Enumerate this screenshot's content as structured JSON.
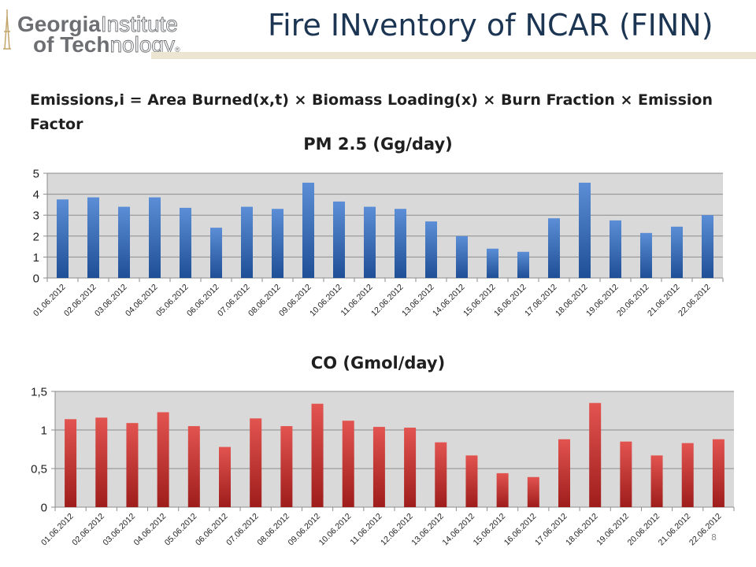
{
  "header": {
    "logo_line1_bold": "Georgia",
    "logo_line1_light": "Institute",
    "logo_line2_bold": "of Tech",
    "logo_line2_light": "nology",
    "logo_mark": "®",
    "title": "Fire INventory of NCAR (FINN)"
  },
  "equation": "Emissions,i = Area Burned(x,t) × Biomass Loading(x) × Burn Fraction × Emission Factor",
  "slide_number": "8",
  "colors": {
    "title": "#1b3553",
    "plot_background": "#d9d9d9",
    "pm_bar_top": "#5b8ed6",
    "pm_bar_bottom": "#1f4f96",
    "co_bar_top": "#e25450",
    "co_bar_bottom": "#9e1d1b",
    "logo_gold": "#c3a56a",
    "logo_gray": "#6d6f72"
  },
  "chart_data": [
    {
      "type": "bar",
      "title": "PM 2.5 (Gg/day)",
      "categories": [
        "01.06.2012",
        "02.06.2012",
        "03.06.2012",
        "04.06.2012",
        "05.06.2012",
        "06.06.2012",
        "07.06.2012",
        "08.06.2012",
        "09.06.2012",
        "10.06.2012",
        "11.06.2012",
        "12.06.2012",
        "13.06.2012",
        "14.06.2012",
        "15.06.2012",
        "16.06.2012",
        "17.06.2012",
        "18.06.2012",
        "19.06.2012",
        "20.06.2012",
        "21.06.2012",
        "22.06.2012"
      ],
      "values": [
        3.75,
        3.85,
        3.4,
        3.85,
        3.35,
        2.4,
        3.4,
        3.3,
        4.55,
        3.65,
        3.4,
        3.3,
        2.7,
        2.0,
        1.4,
        1.25,
        2.85,
        4.55,
        2.75,
        2.15,
        2.45,
        3.0
      ],
      "yticks": [
        "0",
        "1",
        "2",
        "3",
        "4",
        "5"
      ],
      "ylim": [
        0,
        5
      ],
      "grid": true,
      "legend": "none"
    },
    {
      "type": "bar",
      "title": "CO (Gmol/day)",
      "categories": [
        "01.06.2012",
        "02.06.2012",
        "03.06.2012",
        "04.06.2012",
        "05.06.2012",
        "06.06.2012",
        "07.06.2012",
        "08.06.2012",
        "09.06.2012",
        "10.06.2012",
        "11.06.2012",
        "12.06.2012",
        "13.06.2012",
        "14.06.2012",
        "15.06.2012",
        "16.06.2012",
        "17.06.2012",
        "18.06.2012",
        "19.06.2012",
        "20.06.2012",
        "21.06.2012",
        "22.06.2012"
      ],
      "values": [
        1.14,
        1.16,
        1.09,
        1.23,
        1.05,
        0.78,
        1.15,
        1.05,
        1.34,
        1.12,
        1.04,
        1.03,
        0.84,
        0.67,
        0.44,
        0.39,
        0.88,
        1.35,
        0.85,
        0.67,
        0.83,
        0.88
      ],
      "yticks": [
        "0",
        "0,5",
        "1",
        "1,5"
      ],
      "ylim": [
        0,
        1.5
      ],
      "grid": true,
      "legend": "none"
    }
  ]
}
